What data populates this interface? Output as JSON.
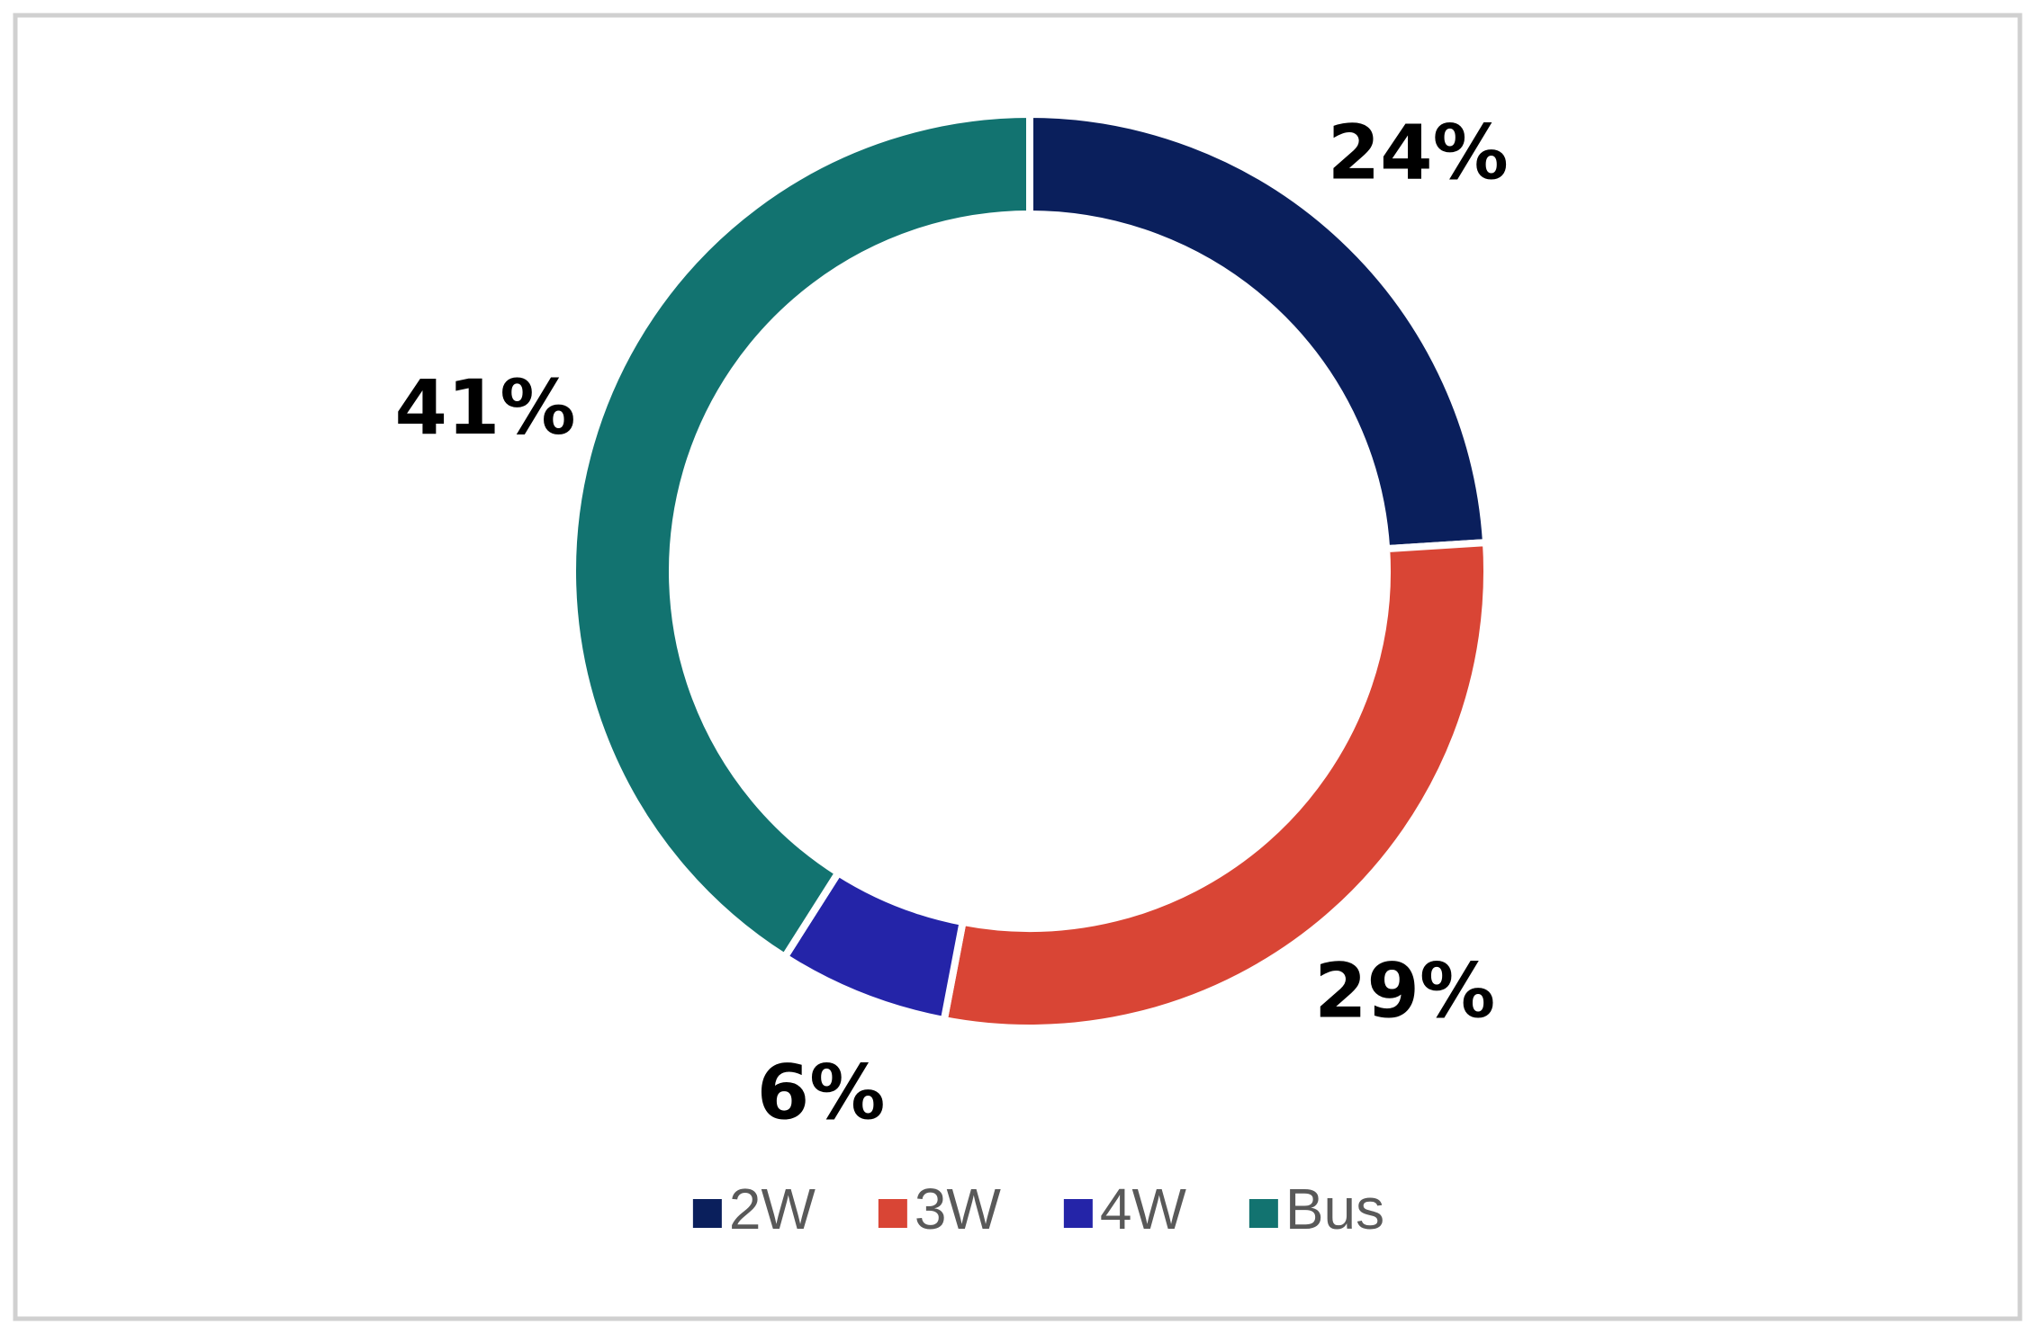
{
  "chart_data": {
    "type": "donut",
    "categories": [
      "2W",
      "3W",
      "4W",
      "Bus"
    ],
    "values": [
      24,
      29,
      6,
      41
    ],
    "value_labels": [
      "24%",
      "29%",
      "6%",
      "41%"
    ],
    "colors": [
      "#0a1f5c",
      "#d94535",
      "#2424a8",
      "#127370"
    ],
    "legend": "bottom"
  }
}
